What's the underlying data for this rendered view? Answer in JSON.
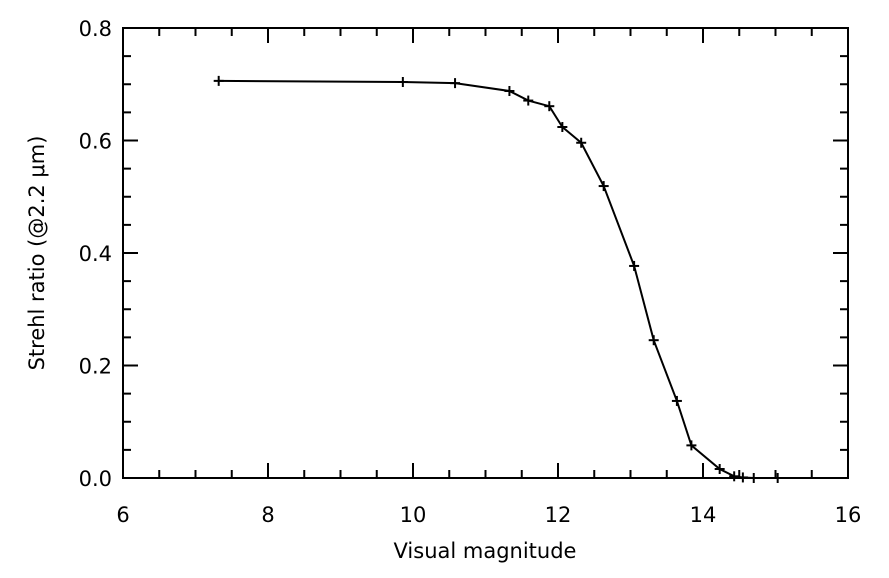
{
  "chart_data": {
    "type": "line",
    "title": "",
    "xlabel": "Visual magnitude",
    "ylabel": "Strehl ratio (@2.2 μm)",
    "xlim": [
      6,
      16
    ],
    "ylim": [
      0.0,
      0.8
    ],
    "grid": false,
    "legend": "none",
    "x_ticks": [
      6,
      8,
      10,
      12,
      14,
      16
    ],
    "x_tick_labels": [
      "6",
      "8",
      "10",
      "12",
      "14",
      "16"
    ],
    "y_ticks": [
      0.0,
      0.2,
      0.4,
      0.6,
      0.8
    ],
    "y_tick_labels": [
      "0.0",
      "0.2",
      "0.4",
      "0.6",
      "0.8"
    ],
    "x_minor_step": 0.5,
    "y_minor_step": 0.05,
    "marker": "plus",
    "line_color": "#000000",
    "series": [
      {
        "x": [
          7.32,
          9.86,
          10.58,
          11.33,
          11.59,
          11.88,
          12.06,
          12.32,
          12.63,
          13.05,
          13.32,
          13.64,
          13.84,
          14.23,
          14.43,
          14.55,
          14.7,
          15.03
        ],
        "y": [
          0.706,
          0.704,
          0.702,
          0.688,
          0.671,
          0.661,
          0.624,
          0.596,
          0.519,
          0.377,
          0.245,
          0.137,
          0.058,
          0.016,
          0.003,
          0.001,
          0.0,
          0.0
        ]
      }
    ]
  }
}
